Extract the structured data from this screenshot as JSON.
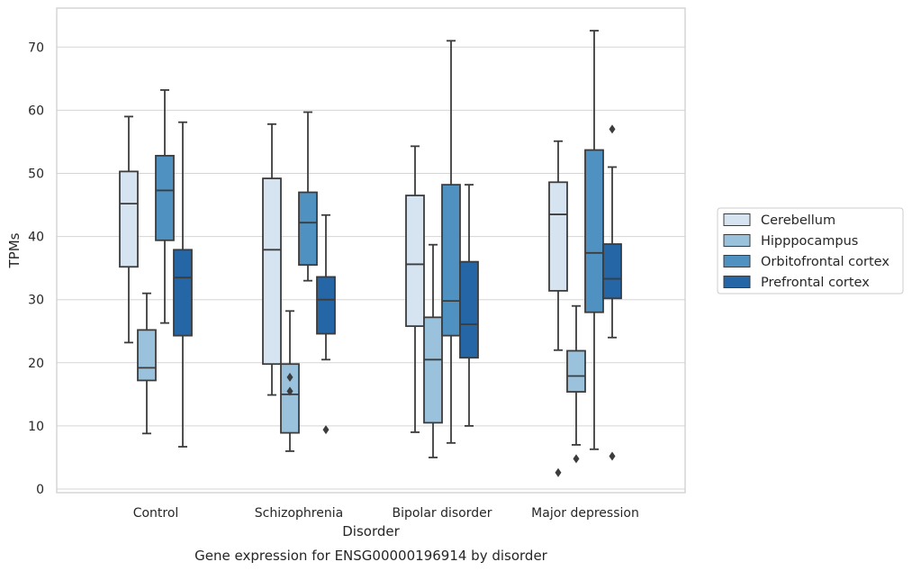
{
  "chart_data": {
    "type": "boxplot",
    "title": "Gene expression for ENSG00000196914 by disorder",
    "xlabel": "Disorder",
    "ylabel": "TPMs",
    "ylim": [
      -0.8,
      76
    ],
    "yticks": [
      0,
      10,
      20,
      30,
      40,
      50,
      60,
      70
    ],
    "grid": "horizontal",
    "legend_position": "right, outside plot",
    "categories": [
      "Control",
      "Schizophrenia",
      "Bipolar disorder",
      "Major depression"
    ],
    "series": [
      {
        "name": "Cerebellum",
        "color": "#d6e4f2",
        "boxes": [
          {
            "whislo": 23.2,
            "q1": 35.2,
            "med": 45.2,
            "q3": 50.3,
            "whishi": 59.0,
            "fliers": []
          },
          {
            "whislo": 14.9,
            "q1": 19.8,
            "med": 37.9,
            "q3": 49.2,
            "whishi": 57.8,
            "fliers": []
          },
          {
            "whislo": 9.0,
            "q1": 25.8,
            "med": 35.6,
            "q3": 46.5,
            "whishi": 54.3,
            "fliers": []
          },
          {
            "whislo": 22.0,
            "q1": 31.4,
            "med": 43.5,
            "q3": 48.6,
            "whishi": 55.1,
            "fliers": []
          }
        ]
      },
      {
        "name": "Hipppocampus",
        "color": "#9ac2dc",
        "boxes": [
          {
            "whislo": 8.8,
            "q1": 17.2,
            "med": 19.2,
            "q3": 25.2,
            "whishi": 31.0,
            "fliers": []
          },
          {
            "whislo": 6.0,
            "q1": 8.9,
            "med": 15.0,
            "q3": 19.8,
            "whishi": 28.2,
            "fliers": [
              17.7,
              15.5
            ]
          },
          {
            "whislo": 5.0,
            "q1": 10.5,
            "med": 20.5,
            "q3": 27.2,
            "whishi": 38.7,
            "fliers": []
          },
          {
            "whislo": 7.0,
            "q1": 15.4,
            "med": 17.9,
            "q3": 21.9,
            "whishi": 29.0,
            "fliers": [
              4.8
            ]
          }
        ]
      },
      {
        "name": "Orbitofrontal cortex",
        "color": "#4f92c2",
        "boxes": [
          {
            "whislo": 26.3,
            "q1": 39.4,
            "med": 47.3,
            "q3": 52.8,
            "whishi": 63.2,
            "fliers": []
          },
          {
            "whislo": 33.0,
            "q1": 35.5,
            "med": 42.2,
            "q3": 47.0,
            "whishi": 59.7,
            "fliers": []
          },
          {
            "whislo": 7.3,
            "q1": 24.3,
            "med": 29.8,
            "q3": 48.2,
            "whishi": 71.0,
            "fliers": []
          },
          {
            "whislo": 6.3,
            "q1": 28.0,
            "med": 37.4,
            "q3": 53.7,
            "whishi": 72.6,
            "fliers": []
          }
        ]
      },
      {
        "name": "Prefrontal cortex",
        "color": "#2466a6",
        "boxes": [
          {
            "whislo": 6.7,
            "q1": 24.3,
            "med": 33.5,
            "q3": 37.9,
            "whishi": 58.1,
            "fliers": []
          },
          {
            "whislo": 20.5,
            "q1": 24.6,
            "med": 30.0,
            "q3": 33.6,
            "whishi": 43.4,
            "fliers": [
              9.4
            ]
          },
          {
            "whislo": 10.0,
            "q1": 20.8,
            "med": 26.1,
            "q3": 36.0,
            "whishi": 48.2,
            "fliers": []
          },
          {
            "whislo": 24.0,
            "q1": 30.2,
            "med": 33.3,
            "q3": 38.8,
            "whishi": 51.0,
            "fliers": [
              57.0,
              5.2
            ]
          }
        ]
      }
    ],
    "extra_fliers": [
      {
        "category": "Major depression",
        "value": 2.6,
        "note_series": "Cerebellum"
      }
    ]
  }
}
